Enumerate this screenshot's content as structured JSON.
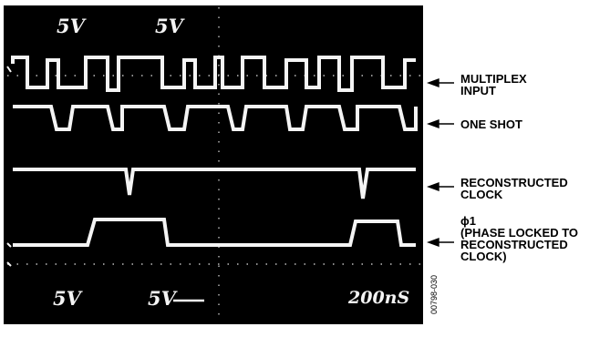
{
  "screen": {
    "top_left_scale": "5V",
    "top_mid_scale": "5V",
    "bottom_left_scale": "5V",
    "bottom_mid_scale": "5V",
    "timebase": "200nS"
  },
  "traces": [
    {
      "id": "multiplex-input",
      "label_lines": [
        "MULTIPLEX",
        "INPUT"
      ]
    },
    {
      "id": "one-shot",
      "label_lines": [
        "ONE SHOT"
      ]
    },
    {
      "id": "reconstructed-clock",
      "label_lines": [
        "RECONSTRUCTED",
        "CLOCK"
      ]
    },
    {
      "id": "phi1",
      "label_lines": [
        "ϕ1",
        "(PHASE LOCKED TO",
        "RECONSTRUCTED",
        "CLOCK)"
      ]
    }
  ],
  "figure_id": "00798-030",
  "colors": {
    "screen_bg": "#000000",
    "trace": "#f4f4f4",
    "grid": "#bdbdbd",
    "frame": "#000000"
  }
}
